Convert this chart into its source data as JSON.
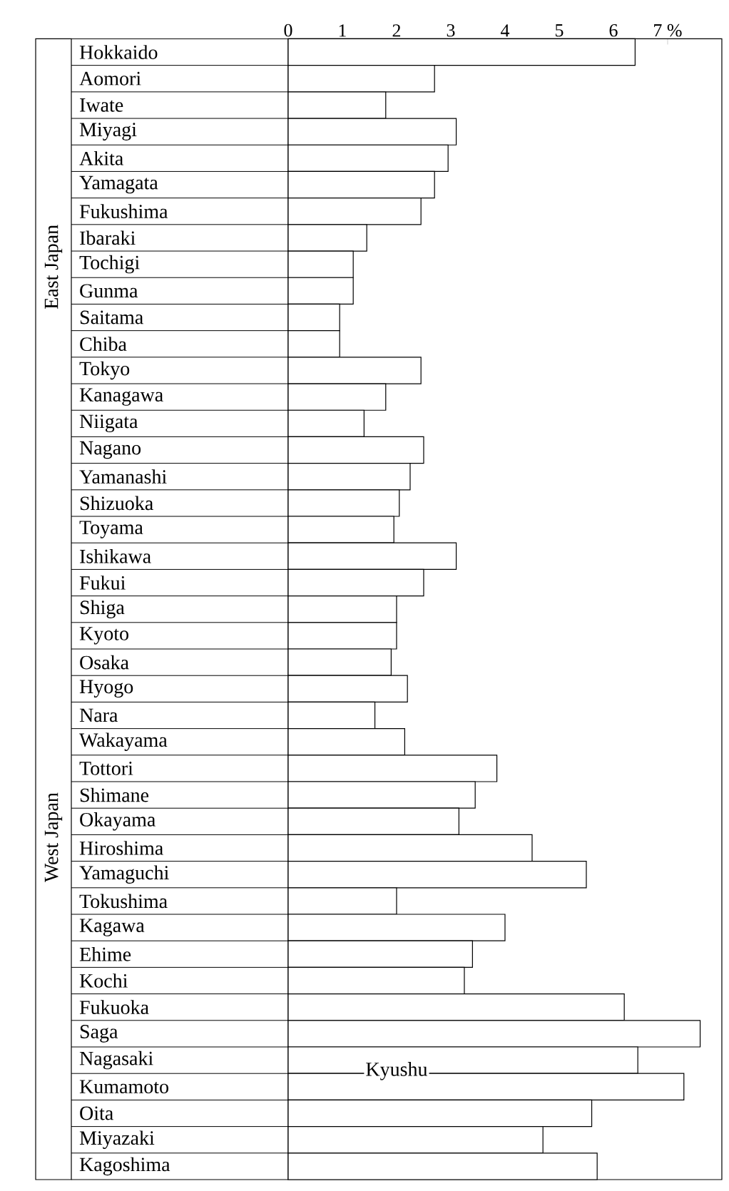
{
  "chart_data": {
    "type": "bar",
    "orientation": "horizontal",
    "categories": [
      "Hokkaido",
      "Aomori",
      "Iwate",
      "Miyagi",
      "Akita",
      "Yamagata",
      "Fukushima",
      "Ibaraki",
      "Tochigi",
      "Gunma",
      "Saitama",
      "Chiba",
      "Tokyo",
      "Kanagawa",
      "Niigata",
      "Nagano",
      "Yamanashi",
      "Shizuoka",
      "Toyama",
      "Ishikawa",
      "Fukui",
      "Shiga",
      "Kyoto",
      "Osaka",
      "Hyogo",
      "Nara",
      "Wakayama",
      "Tottori",
      "Shimane",
      "Okayama",
      "Hiroshima",
      "Yamaguchi",
      "Tokushima",
      "Kagawa",
      "Ehime",
      "Kochi",
      "Fukuoka",
      "Saga",
      "Nagasaki",
      "Kumamoto",
      "Oita",
      "Miyazaki",
      "Kagoshima"
    ],
    "values": [
      6.4,
      2.7,
      1.8,
      3.1,
      2.95,
      2.7,
      2.45,
      1.45,
      1.2,
      1.2,
      0.95,
      0.95,
      2.45,
      1.8,
      1.4,
      2.5,
      2.25,
      2.05,
      1.95,
      3.1,
      2.5,
      2.0,
      2.0,
      1.9,
      2.2,
      1.6,
      2.15,
      3.85,
      3.45,
      3.15,
      4.5,
      5.5,
      2.0,
      4.0,
      3.4,
      3.25,
      6.2,
      7.6,
      6.45,
      7.3,
      5.6,
      4.7,
      5.7
    ],
    "color": "#ffffff",
    "xlim": [
      0,
      8
    ],
    "xticks": [
      0,
      1,
      2,
      3,
      4,
      5,
      6,
      {
        "value": 7,
        "label": "7 %"
      }
    ],
    "annotations": [
      "East Japan",
      "West Japan",
      "Kyushu"
    ]
  }
}
